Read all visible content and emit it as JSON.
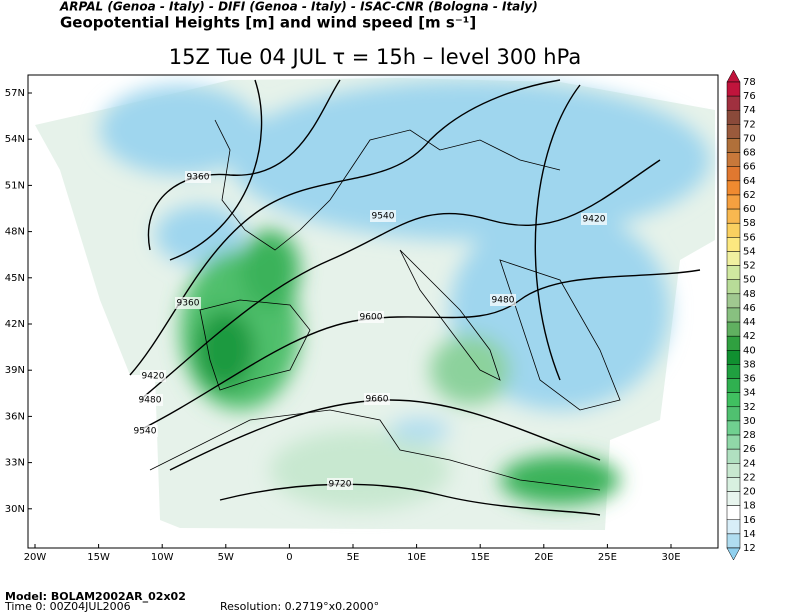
{
  "header": {
    "institutions": "ARPAL (Genoa - Italy)  -  DIFI (Genoa - Italy)  -  ISAC-CNR (Bologna - Italy)",
    "field": "Geopotential Heights [m] and wind speed [m s⁻¹]",
    "title": "15Z Tue 04 JUL   τ = 15h   –   level 300 hPa"
  },
  "map": {
    "lat_labels": [
      "57N",
      "54N",
      "51N",
      "48N",
      "45N",
      "42N",
      "39N",
      "36N",
      "33N",
      "30N"
    ],
    "lon_labels": [
      "20W",
      "15W",
      "10W",
      "5W",
      "0",
      "5E",
      "10E",
      "15E",
      "20E",
      "25E",
      "30E"
    ],
    "contour_labels": [
      "9360",
      "9540",
      "9420",
      "9360",
      "9600",
      "9480",
      "9420",
      "9480",
      "9660",
      "9540",
      "9720"
    ]
  },
  "colorbar": {
    "levels": [
      78,
      76,
      74,
      72,
      70,
      68,
      66,
      64,
      62,
      60,
      58,
      56,
      54,
      52,
      50,
      48,
      46,
      44,
      42,
      40,
      38,
      36,
      34,
      32,
      30,
      28,
      26,
      24,
      22,
      20,
      18,
      16,
      14,
      12
    ],
    "colors": [
      "#c0143c",
      "#a0303f",
      "#8a4a3a",
      "#9a5a3c",
      "#b0703a",
      "#c8783a",
      "#e07830",
      "#f08a30",
      "#f5a040",
      "#f8b850",
      "#fad060",
      "#fce880",
      "#f0f0a0",
      "#d0e8a0",
      "#b8dc98",
      "#a0c890",
      "#88c080",
      "#60b060",
      "#30a040",
      "#109030",
      "#20a040",
      "#30b050",
      "#40c060",
      "#50c070",
      "#70d090",
      "#90d8a8",
      "#b0e0c0",
      "#c8e8d0",
      "#d8f0e0",
      "#e8f5ee",
      "#ffffff",
      "#d8eef8",
      "#b0ddf0",
      "#90d0ee"
    ]
  },
  "footer": {
    "model": "Model: BOLAM2002AR_02x02",
    "time": "Time 0: 00Z04JUL2006",
    "resolution": "Resolution: 0.2719°x0.2000°"
  }
}
